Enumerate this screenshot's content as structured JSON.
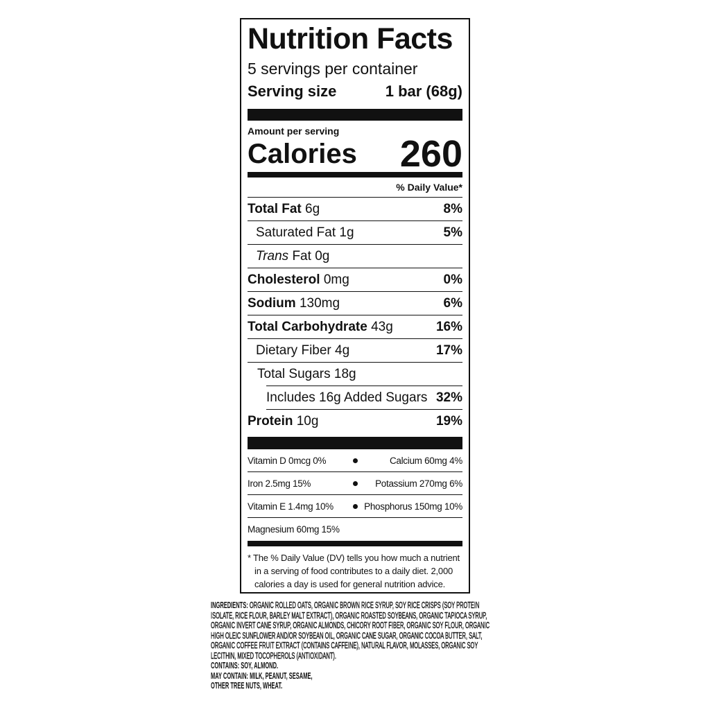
{
  "label": {
    "title": "Nutrition Facts",
    "servings": "5 servings per container",
    "serving_size": {
      "label": "Serving size",
      "value": "1 bar (68g)"
    },
    "amount_per_serving": "Amount per serving",
    "calories": {
      "label": "Calories",
      "value": "260"
    },
    "dv_header": "% Daily Value*",
    "nutrients": [
      {
        "name": "Total Fat",
        "amount": "6g",
        "dv": "8%"
      },
      {
        "name": "Saturated Fat",
        "amount": "1g",
        "dv": "5%"
      },
      {
        "name_italic": "Trans",
        "name": "Fat",
        "amount": "0g"
      },
      {
        "name": "Cholesterol",
        "amount": "0mg",
        "dv": "0%"
      },
      {
        "name": "Sodium",
        "amount": "130mg",
        "dv": "6%"
      },
      {
        "name": "Total Carbohydrate",
        "amount": "43g",
        "dv": "16%"
      },
      {
        "name": "Dietary Fiber",
        "amount": "4g",
        "dv": "17%"
      },
      {
        "name": "Total Sugars",
        "amount": "18g"
      },
      {
        "name": "Includes 16g Added Sugars",
        "dv": "32%"
      },
      {
        "name": "Protein",
        "amount": "10g",
        "dv": "19%"
      }
    ],
    "vitamins": [
      [
        "Vitamin D 0mcg 0%",
        "Calcium 60mg 4%"
      ],
      [
        "Iron 2.5mg 15%",
        "Potassium 270mg 6%"
      ],
      [
        "Vitamin E 1.4mg 10%",
        "Phosphorus 150mg 10%"
      ],
      [
        "Magnesium 60mg 15%"
      ]
    ],
    "footnote": "* The % Daily Value (DV) tells you how much a nutrient in a serving of food contributes to a daily diet. 2,000 calories a day is used for general nutrition advice."
  },
  "ingredients": {
    "label": "INGREDIENTS:",
    "text": "ORGANIC ROLLED OATS, ORGANIC BROWN RICE SYRUP, SOY RICE CRISPS (SOY PROTEIN ISOLATE, RICE FLOUR, BARLEY MALT EXTRACT), ORGANIC ROASTED SOYBEANS, ORGANIC TAPIOCA SYRUP, ORGANIC INVERT CANE SYRUP, ORGANIC ALMONDS, CHICORY ROOT FIBER, ORGANIC SOY FLOUR, ORGANIC HIGH OLEIC SUNFLOWER AND/OR SOYBEAN OIL, ORGANIC CANE SUGAR, ORGANIC COCOA BUTTER, SALT, ORGANIC COFFEE FRUIT EXTRACT (CONTAINS CAFFEINE), NATURAL FLAVOR, MOLASSES, ORGANIC SOY LECITHIN, MIXED TOCOPHEROLS (ANTIOXIDANT).",
    "contains": "CONTAINS: SOY, ALMOND.",
    "may_contain": [
      "MAY CONTAIN: MILK, PEANUT, SESAME,",
      "OTHER TREE NUTS, WHEAT."
    ]
  }
}
